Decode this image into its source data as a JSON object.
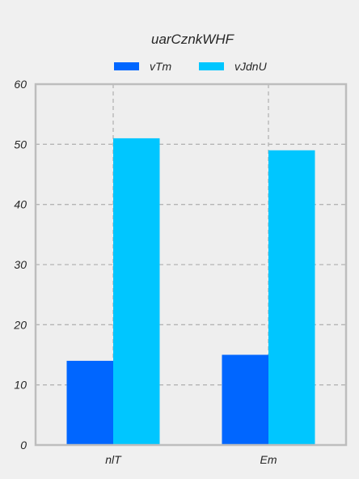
{
  "chart_data": {
    "type": "bar",
    "title": "uarCznkWHF",
    "xlabel": "",
    "ylabel": "",
    "categories": [
      "nlT",
      "Em"
    ],
    "series": [
      {
        "name": "vTm",
        "values": [
          14,
          15
        ],
        "color": "#0066ff"
      },
      {
        "name": "vJdnU",
        "values": [
          51,
          49
        ],
        "color": "#00c6ff"
      }
    ],
    "ylim": [
      0,
      60
    ],
    "yticks": [
      0,
      10,
      20,
      30,
      40,
      50,
      60
    ],
    "grid": true,
    "legend_position": "top-center"
  }
}
